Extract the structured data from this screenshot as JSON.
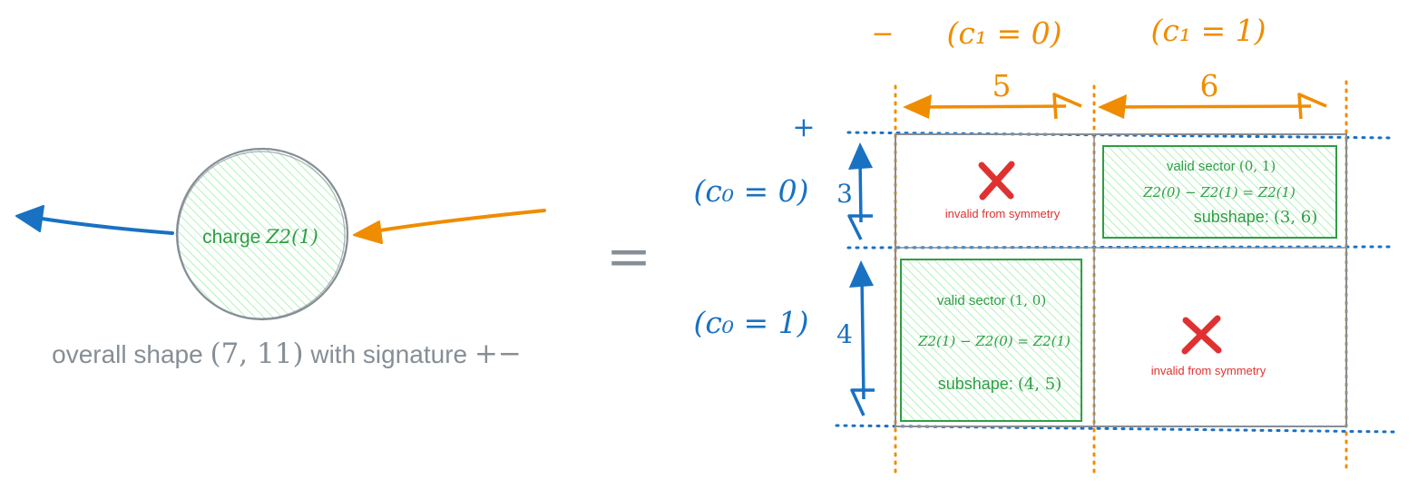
{
  "colors": {
    "blue": "#1971c2",
    "orange": "#f08c00",
    "green": "#2f9e44",
    "green_fill": "#b2f2bb",
    "red": "#e03131",
    "gray": "#868e96",
    "dark_gray": "#495057"
  },
  "icons": [
    "left-arrow-icon",
    "right-arrow-icon",
    "cross-icon"
  ],
  "left": {
    "charge_label": "charge",
    "charge_value": "Z2(1)",
    "overall_text": "overall shape",
    "overall_shape": "(7, 11)",
    "signature_text": "with signature",
    "signature_value": "+−"
  },
  "equals": "=",
  "columns": {
    "sign": "−",
    "labels": [
      "(c₁ = 0)",
      "(c₁ = 1)"
    ],
    "sizes": [
      "5",
      "6"
    ]
  },
  "rows": {
    "sign": "+",
    "labels": [
      "(c₀ = 0)",
      "(c₀ = 1)"
    ],
    "sizes": [
      "3",
      "4"
    ]
  },
  "cells": {
    "top_left": {
      "text": "invalid from symmetry"
    },
    "top_right": {
      "title": "valid sector",
      "title_value": "(0, 1)",
      "equation": "Z2(0) − Z2(1) = Z2(1)",
      "subshape_label": "subshape:",
      "subshape_value": "(3, 6)"
    },
    "bottom_left": {
      "title": "valid sector",
      "title_value": "(1, 0)",
      "equation": "Z2(1) − Z2(0) = Z2(1)",
      "subshape_label": "subshape:",
      "subshape_value": "(4, 5)"
    },
    "bottom_right": {
      "text": "invalid from symmetry"
    }
  }
}
